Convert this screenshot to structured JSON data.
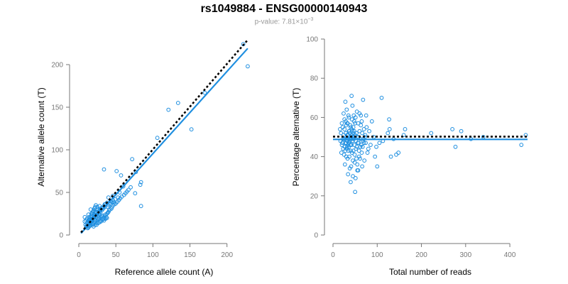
{
  "header": {
    "title": "rs1049884 - ENSG00000140943",
    "subtitle_prefix": "p-value: 7.81×10",
    "subtitle_exp": "−3"
  },
  "chart_data": [
    {
      "type": "scatter",
      "xlabel": "Reference allele count (A)",
      "ylabel": "Alternative allele count (T)",
      "xlim": [
        0,
        230
      ],
      "ylim": [
        0,
        230
      ],
      "xticks": [
        0,
        50,
        100,
        150,
        200
      ],
      "yticks": [
        0,
        50,
        100,
        150,
        200
      ],
      "point_color": "#1f8fe0",
      "fit_line": {
        "x": [
          3,
          228
        ],
        "y": [
          2,
          219
        ],
        "color": "#1f8fe0"
      },
      "reference_line": {
        "x": [
          3,
          228
        ],
        "y": [
          3,
          229
        ],
        "color": "#000000",
        "style": "dotted"
      },
      "points": [
        [
          222,
          224
        ],
        [
          228,
          198
        ],
        [
          170,
          167
        ],
        [
          152,
          124
        ],
        [
          134,
          155
        ],
        [
          121,
          147
        ],
        [
          106,
          114
        ],
        [
          84,
          62
        ],
        [
          83,
          59
        ],
        [
          84,
          34
        ],
        [
          76,
          49
        ],
        [
          72,
          89
        ],
        [
          77,
          74
        ],
        [
          34,
          77
        ],
        [
          51,
          75
        ],
        [
          57,
          70
        ],
        [
          60,
          57
        ],
        [
          55,
          50
        ],
        [
          53,
          44
        ],
        [
          49,
          42
        ],
        [
          46,
          46
        ],
        [
          47,
          38
        ],
        [
          43,
          40
        ],
        [
          40,
          44
        ],
        [
          38,
          38
        ],
        [
          35,
          36
        ],
        [
          39,
          33
        ],
        [
          31,
          32
        ],
        [
          29,
          30
        ],
        [
          28,
          34
        ],
        [
          27,
          28
        ],
        [
          26,
          30
        ],
        [
          25,
          33
        ],
        [
          24,
          26
        ],
        [
          23,
          23
        ],
        [
          22,
          27
        ],
        [
          21,
          24
        ],
        [
          20,
          28
        ],
        [
          19,
          20
        ],
        [
          18,
          22
        ],
        [
          17,
          25
        ],
        [
          16,
          30
        ],
        [
          15,
          18
        ],
        [
          14,
          21
        ],
        [
          13,
          24
        ],
        [
          12,
          15
        ],
        [
          11,
          19
        ],
        [
          10,
          17
        ],
        [
          9,
          12
        ],
        [
          8,
          16
        ],
        [
          8,
          21
        ],
        [
          10,
          10
        ],
        [
          11,
          13
        ],
        [
          12,
          14
        ],
        [
          13,
          12
        ],
        [
          14,
          15
        ],
        [
          15,
          16
        ],
        [
          16,
          14
        ],
        [
          17,
          15
        ],
        [
          18,
          13
        ],
        [
          19,
          12
        ],
        [
          20,
          14
        ],
        [
          21,
          17
        ],
        [
          22,
          15
        ],
        [
          23,
          17
        ],
        [
          24,
          14
        ],
        [
          25,
          16
        ],
        [
          26,
          18
        ],
        [
          27,
          19
        ],
        [
          28,
          20
        ],
        [
          29,
          17
        ],
        [
          30,
          21
        ],
        [
          31,
          22
        ],
        [
          32,
          23
        ],
        [
          33,
          19
        ],
        [
          34,
          20
        ],
        [
          35,
          22
        ],
        [
          36,
          24
        ],
        [
          37,
          21
        ],
        [
          38,
          25
        ],
        [
          39,
          26
        ],
        [
          40,
          27
        ],
        [
          41,
          29
        ],
        [
          42,
          30
        ],
        [
          44,
          31
        ],
        [
          45,
          33
        ],
        [
          46,
          35
        ],
        [
          48,
          36
        ],
        [
          50,
          37
        ],
        [
          52,
          39
        ],
        [
          54,
          41
        ],
        [
          56,
          43
        ],
        [
          58,
          45
        ],
        [
          61,
          47
        ],
        [
          63,
          49
        ],
        [
          65,
          51
        ],
        [
          67,
          53
        ],
        [
          70,
          56
        ],
        [
          16,
          12
        ],
        [
          15,
          11
        ],
        [
          14,
          10
        ],
        [
          13,
          9
        ],
        [
          12,
          8
        ],
        [
          11,
          10
        ],
        [
          13,
          17
        ],
        [
          14,
          19
        ],
        [
          16,
          21
        ],
        [
          17,
          23
        ],
        [
          18,
          25
        ],
        [
          19,
          27
        ],
        [
          20,
          29
        ],
        [
          21,
          31
        ],
        [
          22,
          33
        ],
        [
          23,
          35
        ],
        [
          18,
          18
        ],
        [
          20,
          20
        ],
        [
          22,
          22
        ],
        [
          24,
          24
        ],
        [
          26,
          26
        ],
        [
          28,
          28
        ],
        [
          30,
          30
        ],
        [
          32,
          32
        ],
        [
          34,
          34
        ],
        [
          36,
          36
        ],
        [
          17,
          17
        ],
        [
          19,
          19
        ],
        [
          21,
          21
        ],
        [
          23,
          21
        ],
        [
          25,
          23
        ],
        [
          27,
          25
        ],
        [
          29,
          27
        ],
        [
          31,
          29
        ],
        [
          33,
          31
        ],
        [
          35,
          33
        ],
        [
          40,
          35
        ],
        [
          42,
          37
        ],
        [
          44,
          39
        ],
        [
          46,
          41
        ],
        [
          20,
          10
        ],
        [
          22,
          12
        ],
        [
          24,
          12
        ],
        [
          26,
          14
        ],
        [
          28,
          15
        ],
        [
          30,
          16
        ],
        [
          32,
          18
        ],
        [
          34,
          17
        ],
        [
          36,
          19
        ],
        [
          38,
          20
        ]
      ]
    },
    {
      "type": "scatter",
      "xlabel": "Total number of reads",
      "ylabel": "Percentage alternative (T)",
      "xlim": [
        0,
        440
      ],
      "ylim": [
        0,
        100
      ],
      "xticks": [
        0,
        100,
        200,
        300,
        400
      ],
      "yticks": [
        0,
        20,
        40,
        60,
        80,
        100
      ],
      "point_color": "#1f8fe0",
      "fit_line": {
        "x": [
          0,
          440
        ],
        "y": [
          48.8,
          48.8
        ],
        "color": "#1f8fe0"
      },
      "reference_line": {
        "x": [
          0,
          440
        ],
        "y": [
          50.2,
          50.2
        ],
        "color": "#000000",
        "style": "dotted"
      },
      "points": [
        [
          436,
          51
        ],
        [
          426,
          46
        ],
        [
          340,
          50
        ],
        [
          312,
          49
        ],
        [
          290,
          53
        ],
        [
          277,
          45
        ],
        [
          270,
          54
        ],
        [
          222,
          52
        ],
        [
          163,
          54
        ],
        [
          160,
          51
        ],
        [
          148,
          42
        ],
        [
          143,
          41
        ],
        [
          137,
          49
        ],
        [
          131,
          40
        ],
        [
          128,
          54
        ],
        [
          127,
          59
        ],
        [
          124,
          52
        ],
        [
          113,
          48
        ],
        [
          110,
          70
        ],
        [
          105,
          47
        ],
        [
          100,
          35
        ],
        [
          98,
          45
        ],
        [
          95,
          40
        ],
        [
          92,
          50
        ],
        [
          88,
          58
        ],
        [
          85,
          46
        ],
        [
          82,
          53
        ],
        [
          80,
          44
        ],
        [
          78,
          42
        ],
        [
          76,
          55
        ],
        [
          75,
          61
        ],
        [
          73,
          51
        ],
        [
          71,
          38
        ],
        [
          70,
          47
        ],
        [
          68,
          69
        ],
        [
          66,
          35
        ],
        [
          65,
          58
        ],
        [
          63,
          56
        ],
        [
          62,
          45
        ],
        [
          60,
          62
        ],
        [
          59,
          40
        ],
        [
          58,
          50
        ],
        [
          57,
          33
        ],
        [
          56,
          47
        ],
        [
          55,
          36
        ],
        [
          54,
          63
        ],
        [
          53,
          52
        ],
        [
          52,
          44
        ],
        [
          51,
          29
        ],
        [
          50,
          22
        ],
        [
          49,
          41
        ],
        [
          48,
          58
        ],
        [
          47,
          49
        ],
        [
          46,
          55
        ],
        [
          45,
          38
        ],
        [
          44,
          66
        ],
        [
          43,
          42
        ],
        [
          42,
          71
        ],
        [
          41,
          50
        ],
        [
          40,
          27
        ],
        [
          39,
          46
        ],
        [
          38,
          34
        ],
        [
          37,
          53
        ],
        [
          36,
          60
        ],
        [
          35,
          43
        ],
        [
          34,
          31
        ],
        [
          33,
          57
        ],
        [
          32,
          48
        ],
        [
          31,
          64
        ],
        [
          30,
          40
        ],
        [
          29,
          52
        ],
        [
          28,
          68
        ],
        [
          27,
          45
        ],
        [
          26,
          59
        ],
        [
          25,
          49
        ],
        [
          24,
          62
        ],
        [
          23,
          44
        ],
        [
          22,
          55
        ],
        [
          21,
          47
        ],
        [
          20,
          57
        ],
        [
          19,
          42
        ],
        [
          18,
          52
        ],
        [
          17,
          48
        ],
        [
          16,
          54
        ],
        [
          30,
          50
        ],
        [
          32,
          45
        ],
        [
          34,
          51
        ],
        [
          36,
          47
        ],
        [
          38,
          52
        ],
        [
          40,
          49
        ],
        [
          42,
          46
        ],
        [
          44,
          53
        ],
        [
          46,
          49
        ],
        [
          48,
          46
        ],
        [
          50,
          51
        ],
        [
          52,
          48
        ],
        [
          54,
          45
        ],
        [
          56,
          50
        ],
        [
          58,
          47
        ],
        [
          60,
          53
        ],
        [
          62,
          49
        ],
        [
          64,
          46
        ],
        [
          66,
          52
        ],
        [
          68,
          48
        ],
        [
          70,
          54
        ],
        [
          72,
          50
        ],
        [
          74,
          47
        ],
        [
          26,
          54
        ],
        [
          28,
          47
        ],
        [
          30,
          56
        ],
        [
          32,
          51
        ],
        [
          34,
          46
        ],
        [
          36,
          53
        ],
        [
          38,
          49
        ],
        [
          40,
          55
        ],
        [
          42,
          51
        ],
        [
          44,
          48
        ],
        [
          46,
          43
        ],
        [
          48,
          53
        ],
        [
          50,
          57
        ],
        [
          25,
          41
        ],
        [
          27,
          36
        ],
        [
          29,
          58
        ],
        [
          31,
          44
        ],
        [
          33,
          39
        ],
        [
          35,
          61
        ],
        [
          37,
          40
        ],
        [
          39,
          56
        ],
        [
          41,
          35
        ],
        [
          43,
          59
        ],
        [
          45,
          30
        ],
        [
          47,
          61
        ],
        [
          49,
          37
        ],
        [
          51,
          60
        ],
        [
          53,
          39
        ],
        [
          55,
          33
        ],
        [
          57,
          57
        ],
        [
          59,
          43
        ],
        [
          61,
          39
        ],
        [
          63,
          61
        ],
        [
          65,
          42
        ],
        [
          67,
          45
        ],
        [
          69,
          49
        ],
        [
          26,
          49
        ],
        [
          28,
          43
        ],
        [
          30,
          47
        ],
        [
          32,
          57
        ],
        [
          34,
          49
        ],
        [
          36,
          45
        ],
        [
          38,
          48
        ],
        [
          40,
          43
        ],
        [
          42,
          54
        ],
        [
          44,
          50
        ],
        [
          46,
          52
        ],
        [
          48,
          50
        ],
        [
          24,
          51
        ],
        [
          22,
          49
        ],
        [
          20,
          46
        ]
      ]
    }
  ]
}
